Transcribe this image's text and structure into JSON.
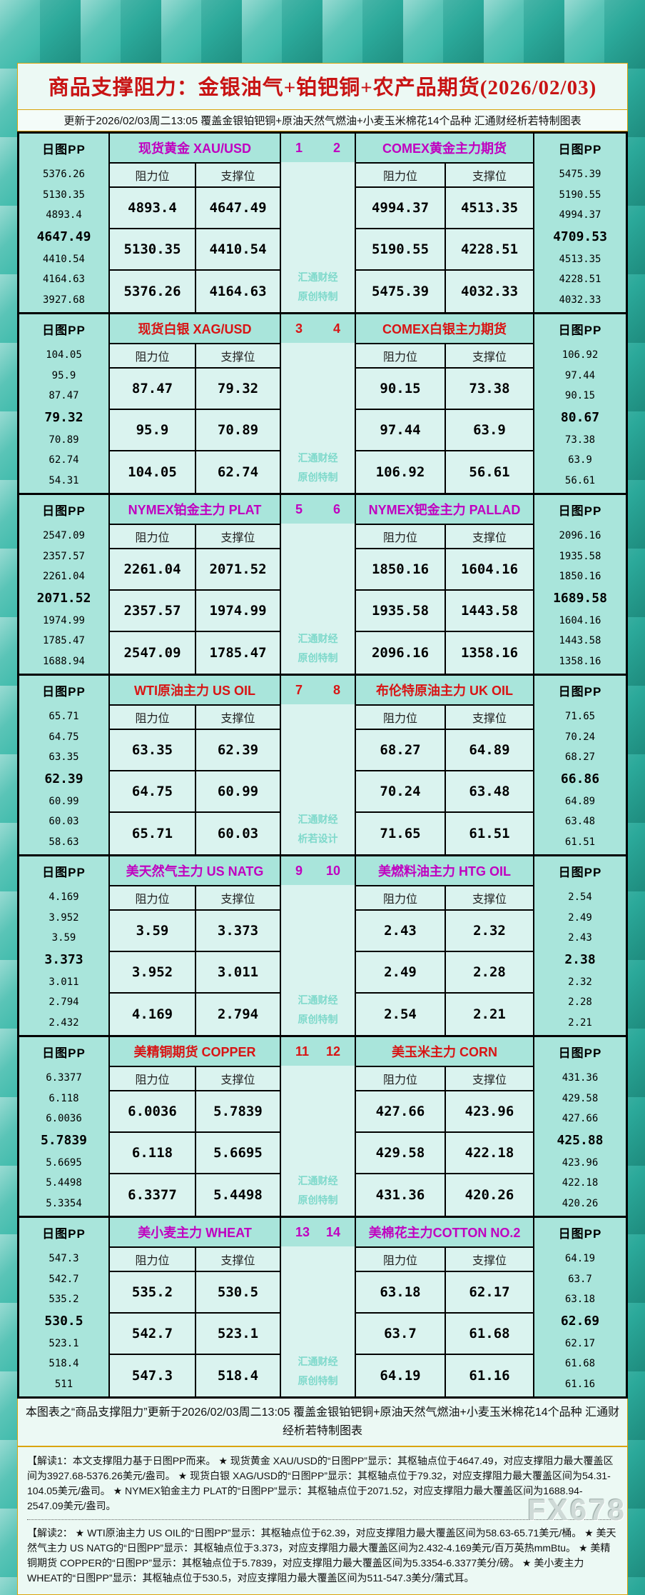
{
  "header": {
    "title": "商品支撑阻力：金银油气+铂钯铜+农产品期货(2026/02/03)",
    "subtitle": "更新于2026/02/03周二13:05 覆盖金银铂钯铜+原油天然气燃油+小麦玉米棉花14个品种 汇通财经析若特制图表"
  },
  "labels": {
    "pp_header": "日图PP",
    "resistance": "阻力位",
    "support": "支撑位",
    "brand_top": "汇通财经"
  },
  "colors": {
    "title_red": "#c81414",
    "accent_red": "#d81414",
    "accent_magenta": "#c000c0",
    "teal_cell": "#a9e5db",
    "light_cell": "#daf3ef",
    "gold_border": "#d9a40b",
    "brand_watermark": "#7fd9cb"
  },
  "chart_data": {
    "type": "table",
    "title": "商品支撑阻力：金银油气+铂钯铜+农产品期货(2026/02/03)",
    "columns": [
      "阻力位",
      "支撑位"
    ],
    "pairs": [
      {
        "index_left": "1",
        "index_right": "2",
        "accent_color": "#c000c0",
        "brand_bottom": "原创特制",
        "left": {
          "name": "现货黄金 XAU/USD",
          "pp_levels": [
            "5376.26",
            "5130.35",
            "4893.4",
            "4647.49",
            "4410.54",
            "4164.63",
            "3927.68"
          ],
          "pivot": "4647.49",
          "rows": [
            [
              "4893.4",
              "4647.49"
            ],
            [
              "5130.35",
              "4410.54"
            ],
            [
              "5376.26",
              "4164.63"
            ]
          ]
        },
        "right": {
          "name": "COMEX黄金主力期货",
          "pp_levels": [
            "5475.39",
            "5190.55",
            "4994.37",
            "4709.53",
            "4513.35",
            "4228.51",
            "4032.33"
          ],
          "pivot": "4709.53",
          "rows": [
            [
              "4994.37",
              "4513.35"
            ],
            [
              "5190.55",
              "4228.51"
            ],
            [
              "5475.39",
              "4032.33"
            ]
          ]
        }
      },
      {
        "index_left": "3",
        "index_right": "4",
        "accent_color": "#d81414",
        "brand_bottom": "原创特制",
        "left": {
          "name": "现货白银 XAG/USD",
          "pp_levels": [
            "104.05",
            "95.9",
            "87.47",
            "79.32",
            "70.89",
            "62.74",
            "54.31"
          ],
          "pivot": "79.32",
          "rows": [
            [
              "87.47",
              "79.32"
            ],
            [
              "95.9",
              "70.89"
            ],
            [
              "104.05",
              "62.74"
            ]
          ]
        },
        "right": {
          "name": "COMEX白银主力期货",
          "pp_levels": [
            "106.92",
            "97.44",
            "90.15",
            "80.67",
            "73.38",
            "63.9",
            "56.61"
          ],
          "pivot": "80.67",
          "rows": [
            [
              "90.15",
              "73.38"
            ],
            [
              "97.44",
              "63.9"
            ],
            [
              "106.92",
              "56.61"
            ]
          ]
        }
      },
      {
        "index_left": "5",
        "index_right": "6",
        "accent_color": "#c000c0",
        "brand_bottom": "原创特制",
        "left": {
          "name": "NYMEX铂金主力 PLAT",
          "pp_levels": [
            "2547.09",
            "2357.57",
            "2261.04",
            "2071.52",
            "1974.99",
            "1785.47",
            "1688.94"
          ],
          "pivot": "2071.52",
          "rows": [
            [
              "2261.04",
              "2071.52"
            ],
            [
              "2357.57",
              "1974.99"
            ],
            [
              "2547.09",
              "1785.47"
            ]
          ]
        },
        "right": {
          "name": "NYMEX钯金主力 PALLAD",
          "pp_levels": [
            "2096.16",
            "1935.58",
            "1850.16",
            "1689.58",
            "1604.16",
            "1443.58",
            "1358.16"
          ],
          "pivot": "1689.58",
          "rows": [
            [
              "1850.16",
              "1604.16"
            ],
            [
              "1935.58",
              "1443.58"
            ],
            [
              "2096.16",
              "1358.16"
            ]
          ]
        }
      },
      {
        "index_left": "7",
        "index_right": "8",
        "accent_color": "#d81414",
        "brand_bottom": "析若设计",
        "left": {
          "name": "WTI原油主力 US OIL",
          "pp_levels": [
            "65.71",
            "64.75",
            "63.35",
            "62.39",
            "60.99",
            "60.03",
            "58.63"
          ],
          "pivot": "62.39",
          "rows": [
            [
              "63.35",
              "62.39"
            ],
            [
              "64.75",
              "60.99"
            ],
            [
              "65.71",
              "60.03"
            ]
          ]
        },
        "right": {
          "name": "布伦特原油主力 UK OIL",
          "pp_levels": [
            "71.65",
            "70.24",
            "68.27",
            "66.86",
            "64.89",
            "63.48",
            "61.51"
          ],
          "pivot": "66.86",
          "rows": [
            [
              "68.27",
              "64.89"
            ],
            [
              "70.24",
              "63.48"
            ],
            [
              "71.65",
              "61.51"
            ]
          ]
        }
      },
      {
        "index_left": "9",
        "index_right": "10",
        "accent_color": "#c000c0",
        "brand_bottom": "原创特制",
        "left": {
          "name": "美天然气主力 US NATG",
          "pp_levels": [
            "4.169",
            "3.952",
            "3.59",
            "3.373",
            "3.011",
            "2.794",
            "2.432"
          ],
          "pivot": "3.373",
          "rows": [
            [
              "3.59",
              "3.373"
            ],
            [
              "3.952",
              "3.011"
            ],
            [
              "4.169",
              "2.794"
            ]
          ]
        },
        "right": {
          "name": "美燃料油主力 HTG OIL",
          "pp_levels": [
            "2.54",
            "2.49",
            "2.43",
            "2.38",
            "2.32",
            "2.28",
            "2.21"
          ],
          "pivot": "2.38",
          "rows": [
            [
              "2.43",
              "2.32"
            ],
            [
              "2.49",
              "2.28"
            ],
            [
              "2.54",
              "2.21"
            ]
          ]
        }
      },
      {
        "index_left": "11",
        "index_right": "12",
        "accent_color": "#d81414",
        "brand_bottom": "原创特制",
        "left": {
          "name": "美精铜期货 COPPER",
          "pp_levels": [
            "6.3377",
            "6.118",
            "6.0036",
            "5.7839",
            "5.6695",
            "5.4498",
            "5.3354"
          ],
          "pivot": "5.7839",
          "rows": [
            [
              "6.0036",
              "5.7839"
            ],
            [
              "6.118",
              "5.6695"
            ],
            [
              "6.3377",
              "5.4498"
            ]
          ]
        },
        "right": {
          "name": "美玉米主力 CORN",
          "pp_levels": [
            "431.36",
            "429.58",
            "427.66",
            "425.88",
            "423.96",
            "422.18",
            "420.26"
          ],
          "pivot": "425.88",
          "rows": [
            [
              "427.66",
              "423.96"
            ],
            [
              "429.58",
              "422.18"
            ],
            [
              "431.36",
              "420.26"
            ]
          ]
        }
      },
      {
        "index_left": "13",
        "index_right": "14",
        "accent_color": "#c000c0",
        "brand_bottom": "原创特制",
        "left": {
          "name": "美小麦主力 WHEAT",
          "pp_levels": [
            "547.3",
            "542.7",
            "535.2",
            "530.5",
            "523.1",
            "518.4",
            "511"
          ],
          "pivot": "530.5",
          "rows": [
            [
              "535.2",
              "530.5"
            ],
            [
              "542.7",
              "523.1"
            ],
            [
              "547.3",
              "518.4"
            ]
          ]
        },
        "right": {
          "name": "美棉花主力COTTON NO.2",
          "pp_levels": [
            "64.19",
            "63.7",
            "63.18",
            "62.69",
            "62.17",
            "61.68",
            "61.16"
          ],
          "pivot": "62.69",
          "rows": [
            [
              "63.18",
              "62.17"
            ],
            [
              "63.7",
              "61.68"
            ],
            [
              "64.19",
              "61.16"
            ]
          ]
        }
      }
    ]
  },
  "footer": {
    "summary": "本图表之“商品支撑阻力”更新于2026/02/03周二13:05 覆盖金银铂钯铜+原油天然气燃油+小麦玉米棉花14个品种 汇通财经析若特制图表",
    "note1": "【解读1：本文支撑阻力基于日图PP而来。 ★ 现货黄金 XAU/USD的“日图PP”显示：其枢轴点位于4647.49，对应支撑阻力最大覆盖区间为3927.68-5376.26美元/盎司。 ★ 现货白银 XAG/USD的“日图PP”显示：其枢轴点位于79.32，对应支撑阻力最大覆盖区间为54.31-104.05美元/盎司。 ★ NYMEX铂金主力 PLAT的“日图PP”显示：其枢轴点位于2071.52，对应支撑阻力最大覆盖区间为1688.94-2547.09美元/盎司。",
    "note2": "【解读2： ★ WTI原油主力 US OIL的“日图PP”显示：其枢轴点位于62.39，对应支撑阻力最大覆盖区间为58.63-65.71美元/桶。 ★ 美天然气主力 US NATG的“日图PP”显示：其枢轴点位于3.373，对应支撑阻力最大覆盖区间为2.432-4.169美元/百万英热mmBtu。 ★ 美精铜期货 COPPER的“日图PP”显示：其枢轴点位于5.7839，对应支撑阻力最大覆盖区间为5.3354-6.3377美分/磅。 ★ 美小麦主力 WHEAT的“日图PP”显示：其枢轴点位于530.5，对应支撑阻力最大覆盖区间为511-547.3美分/蒲式耳。",
    "watermark": "FX678"
  }
}
